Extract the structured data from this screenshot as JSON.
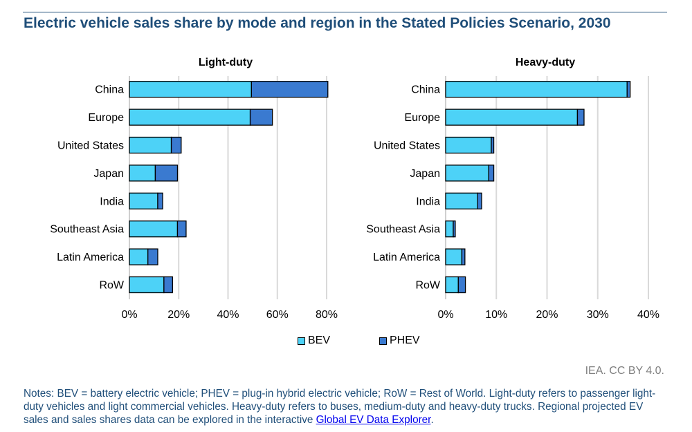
{
  "title": "Electric vehicle sales share by mode and region in the Stated Policies Scenario, 2030",
  "colors": {
    "bev": "#4dd2f7",
    "phev": "#3a7ad0",
    "title": "#1f4e79",
    "grid": "#d9d9d9"
  },
  "chart_data": [
    {
      "type": "bar",
      "orientation": "horizontal",
      "stacked": true,
      "title": "Light-duty",
      "categories": [
        "China",
        "Europe",
        "United States",
        "Japan",
        "India",
        "Southeast Asia",
        "Latin America",
        "RoW"
      ],
      "series": [
        {
          "name": "BEV",
          "values": [
            49.5,
            49,
            17,
            10.5,
            11.5,
            19.5,
            7.5,
            14
          ]
        },
        {
          "name": "PHEV",
          "values": [
            31,
            9,
            4,
            9,
            2,
            3.5,
            4,
            3.5
          ]
        }
      ],
      "xlim": [
        0,
        80
      ],
      "xticks": [
        0,
        20,
        40,
        60,
        80
      ],
      "tick_labels": [
        "0%",
        "20%",
        "40%",
        "60%",
        "80%"
      ],
      "xlabel": "",
      "ylabel": ""
    },
    {
      "type": "bar",
      "orientation": "horizontal",
      "stacked": true,
      "title": "Heavy-duty",
      "categories": [
        "China",
        "Europe",
        "United States",
        "Japan",
        "India",
        "Southeast Asia",
        "Latin America",
        "RoW"
      ],
      "series": [
        {
          "name": "BEV",
          "values": [
            35.8,
            26,
            9,
            8.5,
            6.3,
            1.5,
            3.2,
            2.5
          ]
        },
        {
          "name": "PHEV",
          "values": [
            0.6,
            1.3,
            0.5,
            1,
            0.8,
            0.4,
            0.6,
            1.4
          ]
        }
      ],
      "xlim": [
        0,
        40
      ],
      "xticks": [
        0,
        10,
        20,
        30,
        40
      ],
      "tick_labels": [
        "0%",
        "10%",
        "20%",
        "30%",
        "40%"
      ],
      "xlabel": "",
      "ylabel": ""
    }
  ],
  "legend": {
    "bev_label": "BEV",
    "phev_label": "PHEV"
  },
  "credit": "IEA. CC BY 4.0.",
  "notes": {
    "text": "Notes: BEV = battery electric vehicle; PHEV = plug-in hybrid electric vehicle; RoW = Rest of World. Light-duty refers to passenger light-duty vehicles and light commercial vehicles. Heavy-duty refers to buses, medium-duty and heavy-duty trucks. Regional projected EV sales and sales shares data can be explored in the interactive ",
    "link_text": "Global EV Data Explorer",
    "end": "."
  }
}
